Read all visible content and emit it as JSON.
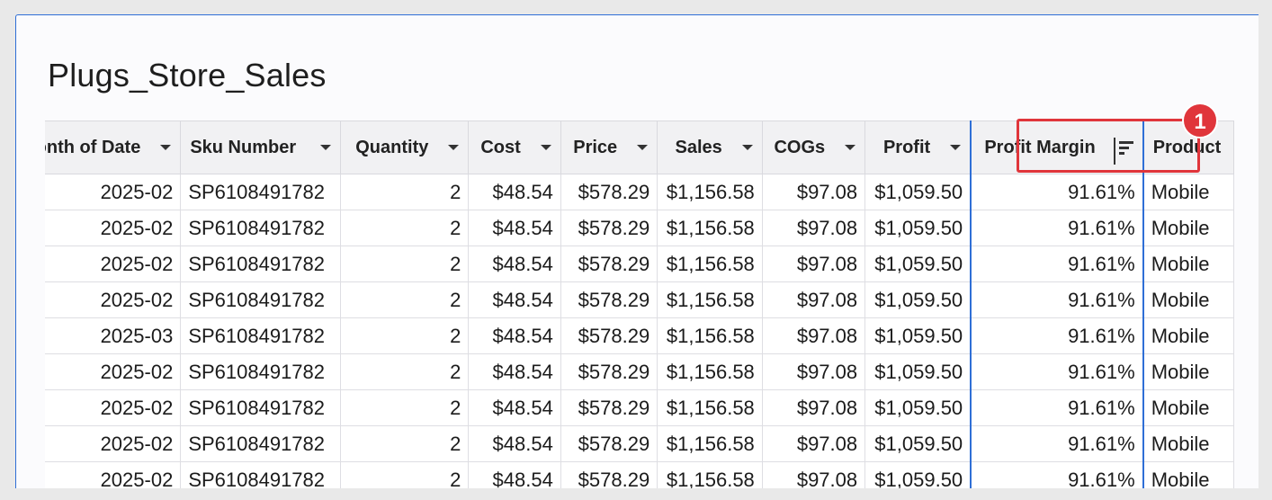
{
  "page": {
    "title": "Plugs_Store_Sales"
  },
  "table": {
    "columns": [
      {
        "label": "Month of Date",
        "align": "right"
      },
      {
        "label": "Sku Number",
        "align": "left"
      },
      {
        "label": "Quantity",
        "align": "right"
      },
      {
        "label": "Cost",
        "align": "right"
      },
      {
        "label": "Price",
        "align": "right"
      },
      {
        "label": "Sales",
        "align": "right"
      },
      {
        "label": "COGs",
        "align": "right"
      },
      {
        "label": "Profit",
        "align": "right"
      },
      {
        "label": "Profit Margin",
        "align": "right"
      },
      {
        "label": "Product",
        "align": "left"
      }
    ],
    "rows": [
      [
        "2025-02",
        "SP6108491782",
        "2",
        "$48.54",
        "$578.29",
        "$1,156.58",
        "$97.08",
        "$1,059.50",
        "91.61%",
        "Mobile"
      ],
      [
        "2025-02",
        "SP6108491782",
        "2",
        "$48.54",
        "$578.29",
        "$1,156.58",
        "$97.08",
        "$1,059.50",
        "91.61%",
        "Mobile"
      ],
      [
        "2025-02",
        "SP6108491782",
        "2",
        "$48.54",
        "$578.29",
        "$1,156.58",
        "$97.08",
        "$1,059.50",
        "91.61%",
        "Mobile"
      ],
      [
        "2025-02",
        "SP6108491782",
        "2",
        "$48.54",
        "$578.29",
        "$1,156.58",
        "$97.08",
        "$1,059.50",
        "91.61%",
        "Mobile"
      ],
      [
        "2025-03",
        "SP6108491782",
        "2",
        "$48.54",
        "$578.29",
        "$1,156.58",
        "$97.08",
        "$1,059.50",
        "91.61%",
        "Mobile"
      ],
      [
        "2025-02",
        "SP6108491782",
        "2",
        "$48.54",
        "$578.29",
        "$1,156.58",
        "$97.08",
        "$1,059.50",
        "91.61%",
        "Mobile"
      ],
      [
        "2025-02",
        "SP6108491782",
        "2",
        "$48.54",
        "$578.29",
        "$1,156.58",
        "$97.08",
        "$1,059.50",
        "91.61%",
        "Mobile"
      ],
      [
        "2025-02",
        "SP6108491782",
        "2",
        "$48.54",
        "$578.29",
        "$1,156.58",
        "$97.08",
        "$1,059.50",
        "91.61%",
        "Mobile"
      ],
      [
        "2025-02",
        "SP6108491782",
        "2",
        "$48.54",
        "$578.29",
        "$1,156.58",
        "$97.08",
        "$1,059.50",
        "91.61%",
        "Mobile"
      ]
    ],
    "sorted_column_icon": "sort-descending-icon",
    "header_dropdown_icon": "caret-down-icon"
  },
  "annotation": {
    "badge_text": "1",
    "color": "#e0353b"
  },
  "colors": {
    "selection": "#2f6fd6",
    "header_bg": "#f1f1f3"
  }
}
